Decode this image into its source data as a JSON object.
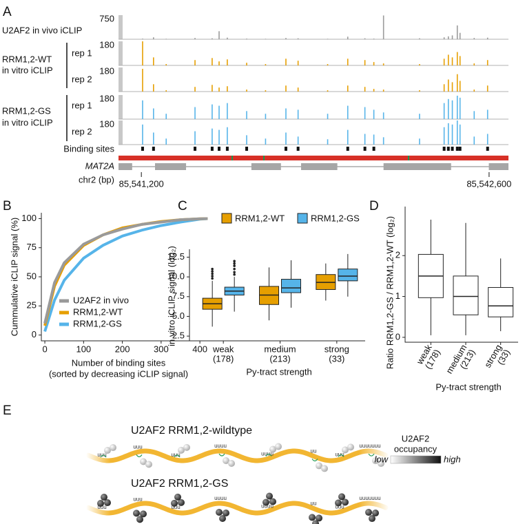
{
  "panel_labels": [
    "A",
    "B",
    "C",
    "D",
    "E"
  ],
  "panel_a": {
    "groups": [
      {
        "lines": [
          "U2AF2 in vivo iCLIP"
        ]
      },
      {
        "lines": [
          "RRM1,2-WT",
          "in vitro iCLIP"
        ],
        "reps": [
          "rep 1",
          "rep 2"
        ]
      },
      {
        "lines": [
          "RRM1,2-GS",
          "in vitro iCLIP"
        ],
        "reps": [
          "rep 1",
          "rep 2"
        ]
      }
    ],
    "xlim": [
      85541108,
      85542678
    ],
    "xticks": [
      {
        "value": 85541200,
        "label": "85,541,200"
      },
      {
        "value": 85542600,
        "label": "85,542,600"
      }
    ],
    "axis_label": "chr2 (bp)",
    "peak_positions": [
      85541205,
      85541249,
      85541300,
      85541416,
      85541485,
      85541513,
      85541546,
      85541624,
      85541700,
      85541782,
      85541831,
      85541950,
      85542031,
      85542100,
      85542136,
      85542175,
      85542320,
      85542419,
      85542436,
      85542452,
      85542472,
      85542483,
      85542540,
      85542594
    ],
    "tracks": [
      {
        "ymax": 750,
        "color": "#9a9a9a",
        "values": [
          20,
          60,
          15,
          40,
          30,
          250,
          50,
          20,
          15,
          40,
          30,
          15,
          80,
          30,
          20,
          740,
          30,
          60,
          90,
          120,
          430,
          200,
          40,
          50
        ]
      },
      {
        "ymax": 180,
        "color": "#e69f00",
        "values": [
          180,
          60,
          10,
          40,
          55,
          30,
          45,
          20,
          10,
          50,
          35,
          10,
          50,
          40,
          25,
          15,
          10,
          50,
          80,
          60,
          100,
          70,
          15,
          40
        ]
      },
      {
        "ymax": 180,
        "color": "#e69f00",
        "values": [
          170,
          55,
          10,
          35,
          50,
          30,
          40,
          15,
          10,
          45,
          30,
          10,
          45,
          35,
          20,
          15,
          10,
          55,
          90,
          70,
          130,
          80,
          15,
          45
        ]
      },
      {
        "ymax": 180,
        "color": "#56b4e9",
        "values": [
          140,
          80,
          40,
          90,
          110,
          100,
          120,
          60,
          40,
          80,
          70,
          40,
          100,
          90,
          70,
          50,
          40,
          120,
          150,
          140,
          175,
          160,
          60,
          70
        ]
      },
      {
        "ymax": 180,
        "color": "#56b4e9",
        "values": [
          150,
          90,
          45,
          100,
          120,
          110,
          130,
          70,
          45,
          90,
          60,
          40,
          110,
          80,
          75,
          55,
          45,
          130,
          160,
          150,
          180,
          150,
          60,
          80
        ]
      }
    ],
    "binding_sites_label": "Binding sites",
    "binding_sites": [
      85541205,
      85541249,
      85541416,
      85541485,
      85541513,
      85541546,
      85541624,
      85541782,
      85541831,
      85542031,
      85542100,
      85542136,
      85542419,
      85542436,
      85542452,
      85542472,
      85542483,
      85542594
    ],
    "gene_label": "MAT2A",
    "exons": [
      [
        85541108,
        85541163
      ],
      [
        85541255,
        85541380
      ],
      [
        85541643,
        85541762
      ],
      [
        85541843,
        85541989
      ],
      [
        85542175,
        85542447
      ],
      [
        85542599,
        85542678
      ]
    ]
  },
  "chart_data": [
    {
      "type": "line",
      "ylabel": "Cummulative iCLIP signal (%)",
      "xlabel": "Number of binding sites",
      "xlabel_note": "(sorted by decreasing iCLIP signal)",
      "x": [
        0,
        25,
        50,
        100,
        150,
        200,
        250,
        300,
        350,
        400,
        420
      ],
      "series": [
        {
          "name": "U2AF2 in vivo",
          "color": "#9a9a9a",
          "values": [
            10,
            45,
            62,
            78,
            86,
            91,
            95,
            97,
            99,
            99.8,
            100
          ]
        },
        {
          "name": "RRM1,2-WT",
          "color": "#e69f00",
          "values": [
            8,
            42,
            60,
            77,
            86,
            92,
            95,
            97.5,
            99,
            99.8,
            100
          ]
        },
        {
          "name": "RRM1,2-GS",
          "color": "#56b4e9",
          "values": [
            3,
            30,
            47,
            66,
            77,
            85,
            90,
            94,
            97,
            99.5,
            100
          ]
        }
      ],
      "xlim": [
        -9,
        430
      ],
      "xticks": [
        0,
        100,
        200,
        300,
        400
      ],
      "ylim": [
        -5,
        105
      ],
      "yticks": [
        0,
        25,
        50,
        75,
        100
      ]
    },
    {
      "type": "box",
      "ylabel": "in vitro iCLIP signal (log₂)",
      "xlabel": "Py-tract strength",
      "categories": [
        "weak",
        "medium",
        "strong"
      ],
      "category_counts": [
        "(178)",
        "(213)",
        "(33)"
      ],
      "series": [
        {
          "name": "RRM1,2-WT",
          "color": "#e69f00",
          "min": [
            3.7,
            4.5,
            7.0
          ],
          "q1": [
            5.9,
            6.5,
            8.4
          ],
          "median": [
            6.6,
            7.7,
            9.3
          ],
          "q3": [
            7.3,
            8.8,
            10.3
          ],
          "max": [
            9.5,
            11.2,
            11.7
          ],
          "outliers": [
            [
              9.8,
              10.1,
              10.4,
              10.7,
              11.0
            ],
            [],
            []
          ]
        },
        {
          "name": "RRM1,2-GS",
          "color": "#56b4e9",
          "min": [
            5.6,
            6.1,
            7.5
          ],
          "q1": [
            7.7,
            8.0,
            9.5
          ],
          "median": [
            8.2,
            8.6,
            10.1
          ],
          "q3": [
            8.7,
            9.7,
            11.0
          ],
          "max": [
            10.0,
            12.1,
            12.9
          ],
          "outliers": [
            [
              10.3,
              10.6,
              11.0,
              11.4,
              11.7,
              12.0
            ],
            [],
            []
          ]
        }
      ],
      "ylim": [
        1.9,
        13.5
      ],
      "yticks": [
        2.5,
        {
          "value": 5,
          "label": "5.0"
        },
        7.5,
        {
          "value": 10,
          "label": "10.0"
        },
        12.5
      ]
    },
    {
      "type": "box",
      "ylabel": "Ratio RRM1,2-GS / RRM1,2-WT (log₂)",
      "xlabel": "Py-tract strength",
      "categories": [
        "weak",
        "medium",
        "strong"
      ],
      "category_counts": [
        "(178)",
        "(213)",
        "(33)"
      ],
      "color": "#ffffff",
      "min": [
        0.05,
        0.05,
        0.15
      ],
      "q1": [
        0.97,
        0.55,
        0.5
      ],
      "median": [
        1.5,
        1.0,
        0.77
      ],
      "q3": [
        2.03,
        1.5,
        1.22
      ],
      "max": [
        2.88,
        2.8,
        1.93
      ],
      "ylim": [
        -0.12,
        3.2
      ],
      "yticks": [
        0,
        1,
        2
      ]
    }
  ],
  "panel_e": {
    "strands": [
      {
        "title": "U2AF2 RRM1,2-wildtype",
        "tracts": [
          "uuu",
          "uuu",
          "uuu",
          "uuuu",
          "uuuu",
          "uu",
          "uuu",
          "uuuuuuu"
        ]
      },
      {
        "title": "U2AF2 RRM1,2-GS",
        "tracts": [
          "uuu",
          "uuu",
          "uuu",
          "uuuu",
          "uuuu",
          "uu",
          "uuu",
          "uuuuuuu"
        ]
      }
    ],
    "legend": {
      "title": "U2AF2",
      "subtitle": "occupancy",
      "low": "low",
      "high": "high"
    }
  }
}
